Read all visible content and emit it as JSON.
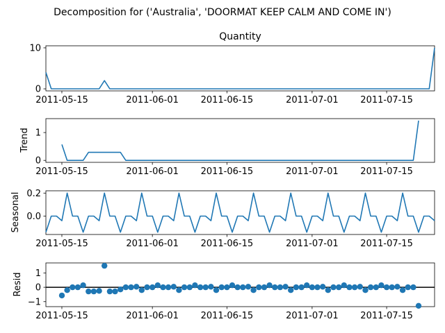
{
  "figure": {
    "suptitle": "Decomposition for ('Australia', 'DOORMAT KEEP CALM AND COME IN')"
  },
  "chart_data": [
    {
      "type": "line",
      "title": "Quantity",
      "ylabel": "",
      "x_start": "2011-05-12",
      "x_end": "2011-07-24",
      "xticks": [
        "2011-05-15",
        "2011-06-01",
        "2011-06-15",
        "2011-07-01",
        "2011-07-15"
      ],
      "ylim": [
        -0.5,
        10.5
      ],
      "yticks": [
        "0",
        "10"
      ],
      "color": "#1f77b4",
      "grid": false,
      "series": [
        {
          "x": "2011-05-12",
          "y": 4
        },
        {
          "x": "2011-05-13",
          "y": 0
        },
        {
          "x": "2011-05-22",
          "y": 0
        },
        {
          "x": "2011-05-23",
          "y": 2
        },
        {
          "x": "2011-05-24",
          "y": 0
        },
        {
          "x": "2011-07-23",
          "y": 0
        },
        {
          "x": "2011-07-24",
          "y": 10
        }
      ]
    },
    {
      "type": "line",
      "title": "",
      "ylabel": "Trend",
      "x_start": "2011-05-12",
      "x_end": "2011-07-24",
      "xticks": [
        "2011-05-15",
        "2011-06-01",
        "2011-06-15",
        "2011-07-01",
        "2011-07-15"
      ],
      "ylim": [
        -0.07,
        1.5
      ],
      "yticks": [
        "0",
        "1"
      ],
      "color": "#1f77b4",
      "grid": false,
      "series": [
        {
          "x": "2011-05-15",
          "y": 0.57
        },
        {
          "x": "2011-05-16",
          "y": 0
        },
        {
          "x": "2011-05-19",
          "y": 0
        },
        {
          "x": "2011-05-20",
          "y": 0.29
        },
        {
          "x": "2011-05-26",
          "y": 0.29
        },
        {
          "x": "2011-05-27",
          "y": 0
        },
        {
          "x": "2011-07-20",
          "y": 0
        },
        {
          "x": "2011-07-21",
          "y": 1.43
        }
      ]
    },
    {
      "type": "line",
      "title": "",
      "ylabel": "Seasonal",
      "x_start": "2011-05-12",
      "x_end": "2011-07-24",
      "xticks": [
        "2011-05-15",
        "2011-06-01",
        "2011-06-15",
        "2011-07-01",
        "2011-07-15"
      ],
      "ylim": [
        -0.16,
        0.22
      ],
      "yticks": [
        "0.2",
        "0.0"
      ],
      "color": "#1f77b4",
      "grid": false,
      "weekly_pattern": [
        -0.14,
        0,
        0,
        -0.04,
        0.2,
        0,
        0
      ],
      "pattern_start": "2011-05-12"
    },
    {
      "type": "scatter",
      "title": "",
      "ylabel": "Resid",
      "x_start": "2011-05-12",
      "x_end": "2011-07-24",
      "xticks": [
        "2011-05-15",
        "2011-06-01",
        "2011-06-15",
        "2011-07-01",
        "2011-07-15"
      ],
      "ylim": [
        -1.35,
        1.7
      ],
      "yticks": [
        "1",
        "0",
        "−1"
      ],
      "color": "#1f77b4",
      "baseline": 0,
      "grid": false,
      "points": [
        {
          "x": "2011-05-15",
          "y": -0.57
        },
        {
          "x": "2011-05-16",
          "y": -0.2
        },
        {
          "x": "2011-05-17",
          "y": 0
        },
        {
          "x": "2011-05-18",
          "y": 0
        },
        {
          "x": "2011-05-19",
          "y": 0.14
        },
        {
          "x": "2011-05-20",
          "y": -0.29
        },
        {
          "x": "2011-05-21",
          "y": -0.29
        },
        {
          "x": "2011-05-22",
          "y": -0.25
        },
        {
          "x": "2011-05-23",
          "y": 1.5
        },
        {
          "x": "2011-05-24",
          "y": -0.29
        },
        {
          "x": "2011-05-25",
          "y": -0.29
        },
        {
          "x": "2011-05-26",
          "y": -0.15
        },
        {
          "x": "2011-05-27",
          "y": 0
        },
        {
          "x": "2011-05-28",
          "y": 0
        },
        {
          "x": "2011-05-29",
          "y": 0.04
        },
        {
          "x": "2011-05-30",
          "y": -0.2
        },
        {
          "x": "2011-05-31",
          "y": 0
        },
        {
          "x": "2011-06-01",
          "y": 0
        },
        {
          "x": "2011-06-02",
          "y": 0.14
        },
        {
          "x": "2011-06-03",
          "y": 0
        },
        {
          "x": "2011-06-04",
          "y": 0
        },
        {
          "x": "2011-06-05",
          "y": 0.04
        },
        {
          "x": "2011-06-06",
          "y": -0.2
        },
        {
          "x": "2011-06-07",
          "y": 0
        },
        {
          "x": "2011-06-08",
          "y": 0
        },
        {
          "x": "2011-06-09",
          "y": 0.14
        },
        {
          "x": "2011-06-10",
          "y": 0
        },
        {
          "x": "2011-06-11",
          "y": 0
        },
        {
          "x": "2011-06-12",
          "y": 0.04
        },
        {
          "x": "2011-06-13",
          "y": -0.2
        },
        {
          "x": "2011-06-14",
          "y": 0
        },
        {
          "x": "2011-06-15",
          "y": 0
        },
        {
          "x": "2011-06-16",
          "y": 0.14
        },
        {
          "x": "2011-06-17",
          "y": 0
        },
        {
          "x": "2011-06-18",
          "y": 0
        },
        {
          "x": "2011-06-19",
          "y": 0.04
        },
        {
          "x": "2011-06-20",
          "y": -0.2
        },
        {
          "x": "2011-06-21",
          "y": 0
        },
        {
          "x": "2011-06-22",
          "y": 0
        },
        {
          "x": "2011-06-23",
          "y": 0.14
        },
        {
          "x": "2011-06-24",
          "y": 0
        },
        {
          "x": "2011-06-25",
          "y": 0
        },
        {
          "x": "2011-06-26",
          "y": 0.04
        },
        {
          "x": "2011-06-27",
          "y": -0.2
        },
        {
          "x": "2011-06-28",
          "y": 0
        },
        {
          "x": "2011-06-29",
          "y": 0
        },
        {
          "x": "2011-06-30",
          "y": 0.14
        },
        {
          "x": "2011-07-01",
          "y": 0
        },
        {
          "x": "2011-07-02",
          "y": 0
        },
        {
          "x": "2011-07-03",
          "y": 0.04
        },
        {
          "x": "2011-07-04",
          "y": -0.2
        },
        {
          "x": "2011-07-05",
          "y": 0
        },
        {
          "x": "2011-07-06",
          "y": 0
        },
        {
          "x": "2011-07-07",
          "y": 0.14
        },
        {
          "x": "2011-07-08",
          "y": 0
        },
        {
          "x": "2011-07-09",
          "y": 0
        },
        {
          "x": "2011-07-10",
          "y": 0.04
        },
        {
          "x": "2011-07-11",
          "y": -0.2
        },
        {
          "x": "2011-07-12",
          "y": 0
        },
        {
          "x": "2011-07-13",
          "y": 0
        },
        {
          "x": "2011-07-14",
          "y": 0.14
        },
        {
          "x": "2011-07-15",
          "y": 0
        },
        {
          "x": "2011-07-16",
          "y": 0
        },
        {
          "x": "2011-07-17",
          "y": 0.04
        },
        {
          "x": "2011-07-18",
          "y": -0.2
        },
        {
          "x": "2011-07-19",
          "y": 0
        },
        {
          "x": "2011-07-20",
          "y": 0
        },
        {
          "x": "2011-07-21",
          "y": -1.29
        }
      ]
    }
  ]
}
